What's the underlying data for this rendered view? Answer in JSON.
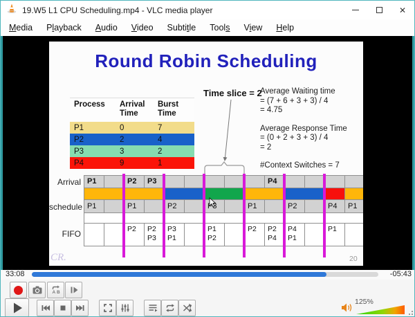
{
  "window": {
    "title": "19.W5 L1 CPU Scheduling.mp4 - VLC media player",
    "close_glyph": "✕"
  },
  "menu": {
    "items": [
      {
        "before": "",
        "key": "M",
        "after": "edia"
      },
      {
        "before": "P",
        "key": "l",
        "after": "ayback"
      },
      {
        "before": "",
        "key": "A",
        "after": "udio"
      },
      {
        "before": "",
        "key": "V",
        "after": "ideo"
      },
      {
        "before": "Subti",
        "key": "t",
        "after": "le"
      },
      {
        "before": "Tool",
        "key": "s",
        "after": ""
      },
      {
        "before": "V",
        "key": "i",
        "after": "ew"
      },
      {
        "before": "",
        "key": "H",
        "after": "elp"
      }
    ]
  },
  "slide": {
    "title": "Round Robin Scheduling",
    "title_color": "#2121bb",
    "time_slice_label": "Time slice = 2",
    "stats": {
      "waiting": [
        "Average Waiting time",
        "= (7 + 6 + 3 + 3) / 4",
        "= 4.75"
      ],
      "response": [
        "Average Response Time",
        "= (0 + 2 + 3 + 3) / 4",
        "= 2"
      ],
      "context": "#Context Switches = 7"
    },
    "process_table": {
      "headers": [
        "Process",
        "Arrival Time",
        "Burst Time"
      ],
      "rows": [
        {
          "process": "P1",
          "arrival": "0",
          "burst": "7",
          "color": "#f2dc8a"
        },
        {
          "process": "P2",
          "arrival": "2",
          "burst": "4",
          "color": "#1961c9"
        },
        {
          "process": "P3",
          "arrival": "3",
          "burst": "2",
          "color": "#86dcb0"
        },
        {
          "process": "P4",
          "arrival": "9",
          "burst": "1",
          "color": "#fb1408"
        }
      ]
    },
    "gantt": {
      "row_labels": {
        "arrival": "Arrival",
        "schedule": "schedule",
        "fifo": "FIFO"
      },
      "time_units": 14,
      "palette": {
        "P1": "#ffb60a",
        "P2": "#1961c9",
        "P3": "#11a64c",
        "P4": "#f7100c"
      },
      "cell_gray": "#d2d2d2",
      "arrival_labels": [
        {
          "t": 0,
          "label": "P1"
        },
        {
          "t": 2,
          "label": "P2"
        },
        {
          "t": 3,
          "label": "P3"
        },
        {
          "t": 9,
          "label": "P4"
        }
      ],
      "execution": [
        {
          "start": 0,
          "len": 4,
          "process": "P1"
        },
        {
          "start": 4,
          "len": 2,
          "process": "P2"
        },
        {
          "start": 6,
          "len": 2,
          "process": "P3"
        },
        {
          "start": 8,
          "len": 2,
          "process": "P1"
        },
        {
          "start": 10,
          "len": 2,
          "process": "P2"
        },
        {
          "start": 12,
          "len": 1,
          "process": "P4"
        },
        {
          "start": 13,
          "len": 1,
          "process": "P1"
        }
      ],
      "schedule_labels": [
        {
          "t": 0,
          "label": "P1"
        },
        {
          "t": 2,
          "label": "P1"
        },
        {
          "t": 4,
          "label": "P2"
        },
        {
          "t": 6,
          "label": "P3"
        },
        {
          "t": 8,
          "label": "P1"
        },
        {
          "t": 10,
          "label": "P2"
        },
        {
          "t": 12,
          "label": "P4"
        },
        {
          "t": 13,
          "label": "P1"
        }
      ],
      "fifo": [
        {
          "t": 2,
          "labels": [
            "P2"
          ]
        },
        {
          "t": 3,
          "labels": [
            "P2",
            "P3"
          ]
        },
        {
          "t": 4,
          "labels": [
            "P3",
            "P1"
          ]
        },
        {
          "t": 6,
          "labels": [
            "P1",
            "P2"
          ]
        },
        {
          "t": 8,
          "labels": [
            "P2"
          ]
        },
        {
          "t": 9,
          "labels": [
            "P2",
            "P4"
          ]
        },
        {
          "t": 10,
          "labels": [
            "P4",
            "P1"
          ]
        },
        {
          "t": 12,
          "labels": [
            "P1"
          ]
        }
      ],
      "slice_lines_t": [
        2,
        4,
        6,
        8,
        10,
        12
      ],
      "slice_line_color": "#d919d9"
    },
    "watermark": "CR.",
    "page_number": "20"
  },
  "seek": {
    "elapsed": "33:08",
    "remaining": "-05:43",
    "progress_pct": 85,
    "fill_color": "#3079d8"
  },
  "volume": {
    "level": "125%"
  },
  "colors": {
    "window_border": "#4fb6bd",
    "video_edge_teal": "#2f9aa0",
    "record_red": "#e01616",
    "speaker_orange": "#e8851a"
  }
}
